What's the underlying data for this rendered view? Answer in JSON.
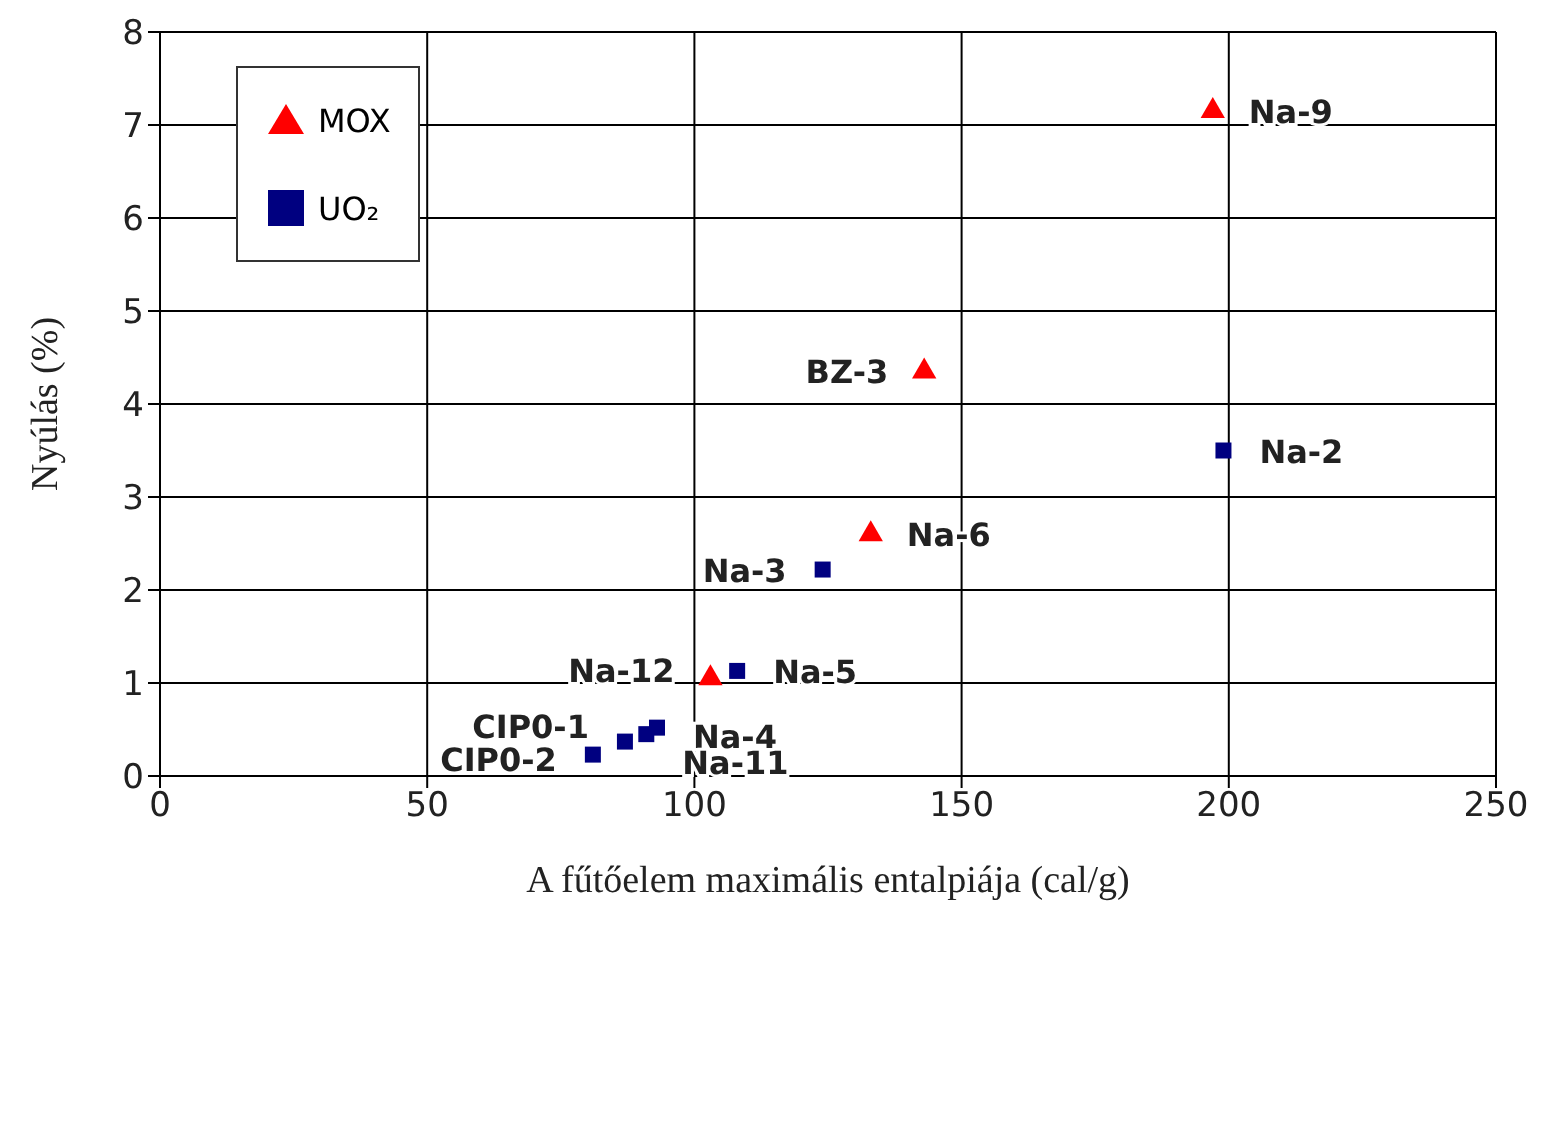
{
  "chart_data": {
    "type": "scatter",
    "xlabel": "A fűtőelem maximális entalpiája (cal/g)",
    "ylabel": "Nyúlás (%)",
    "xlim": [
      0,
      250
    ],
    "xticks": [
      0,
      50,
      100,
      150,
      200,
      250
    ],
    "ylim": [
      0,
      8
    ],
    "yticks": [
      0,
      1,
      2,
      3,
      4,
      5,
      6,
      7,
      8
    ],
    "grid": true,
    "legend": "top left",
    "series": [
      {
        "name": "MOX",
        "color": "#ff0000",
        "marker": "triangle",
        "x": [
          197,
          143,
          133,
          103
        ],
        "values": [
          7.15,
          4.35,
          2.6,
          1.05
        ]
      },
      {
        "name": "UO₂",
        "color": "#000080",
        "marker": "square",
        "x": [
          199,
          124,
          108,
          93,
          91,
          87,
          81
        ],
        "values": [
          3.5,
          2.22,
          1.13,
          0.52,
          0.45,
          0.37,
          0.23
        ]
      }
    ],
    "annotations": [
      {
        "text": "Na-9",
        "x": 197,
        "y": 7.15
      },
      {
        "text": "BZ-3",
        "x": 143,
        "y": 4.35
      },
      {
        "text": "Na-6",
        "x": 133,
        "y": 2.6
      },
      {
        "text": "Na-12",
        "x": 103,
        "y": 1.05
      },
      {
        "text": "Na-2",
        "x": 199,
        "y": 3.5
      },
      {
        "text": "Na-3",
        "x": 124,
        "y": 2.22
      },
      {
        "text": "Na-5",
        "x": 108,
        "y": 1.13
      },
      {
        "text": "Na-4",
        "x": 93,
        "y": 0.52
      },
      {
        "text": "Na-11",
        "x": 91,
        "y": 0.45
      },
      {
        "text": "CIP0-1",
        "x": 87,
        "y": 0.37
      },
      {
        "text": "CIP0-2",
        "x": 81,
        "y": 0.23
      }
    ]
  }
}
